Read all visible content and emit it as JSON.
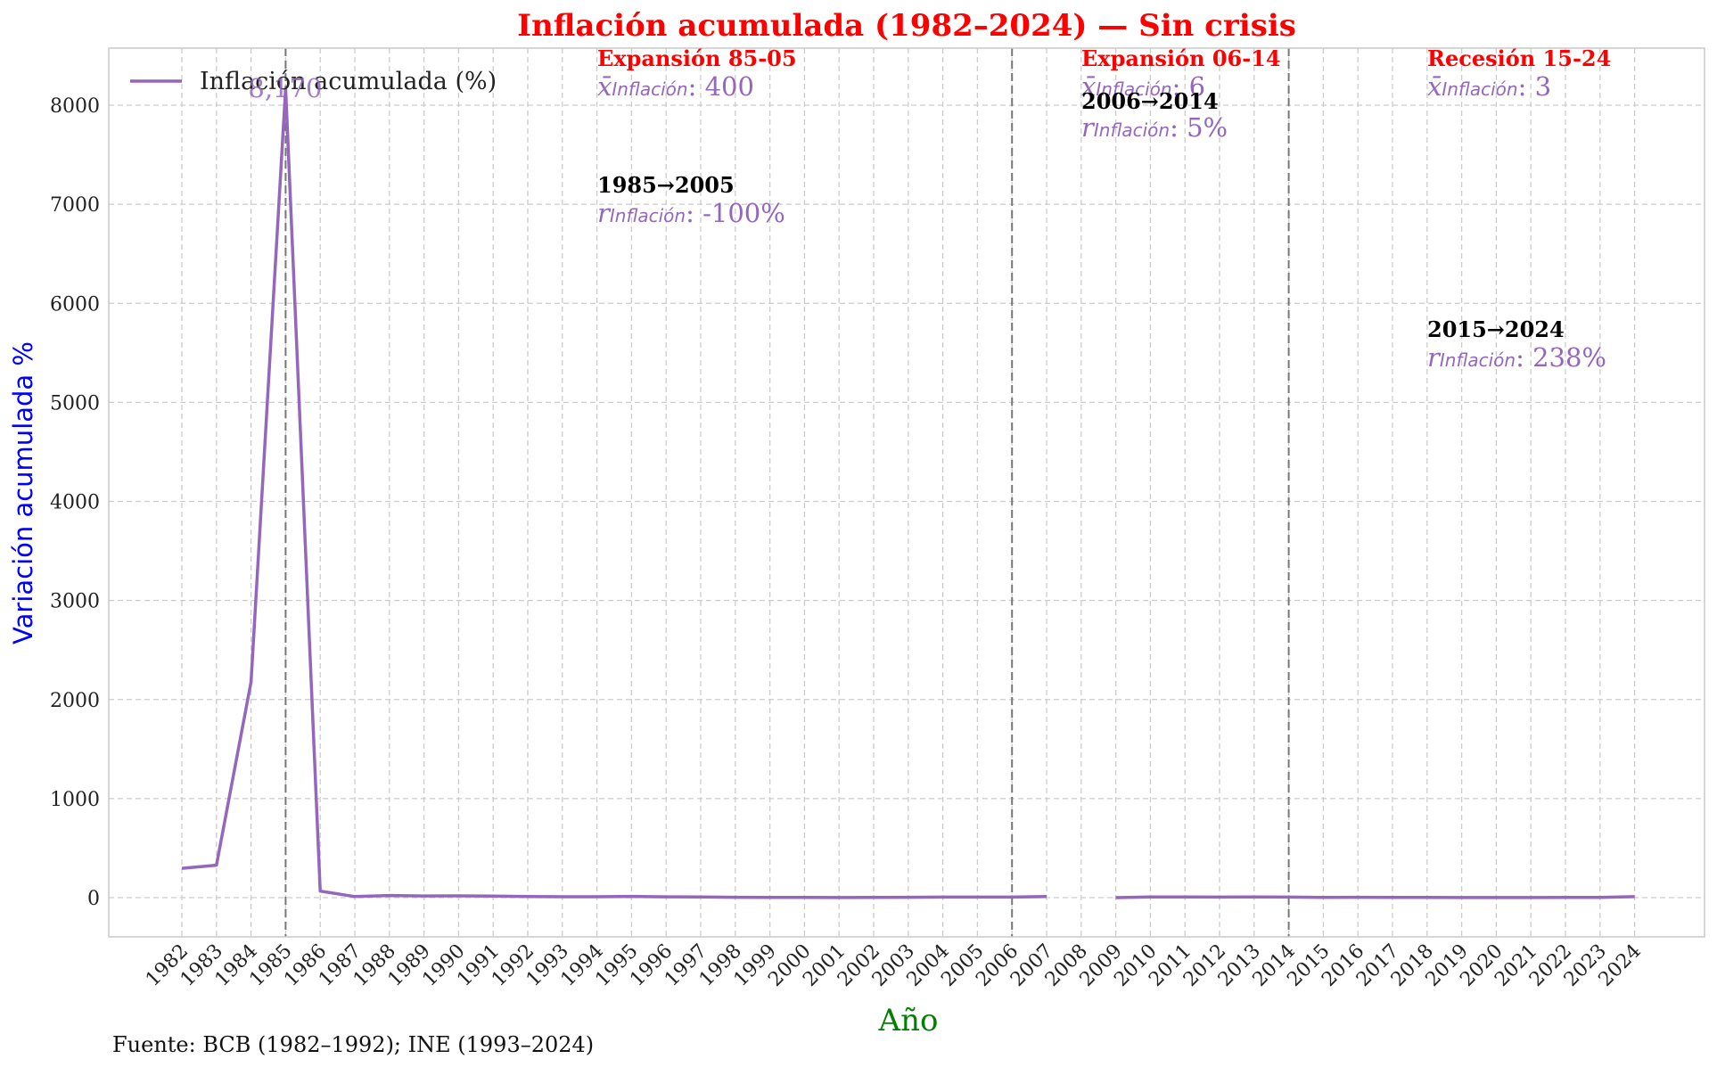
{
  "chart_data": {
    "type": "line",
    "title": "Inflación acumulada (1982–2024) — Sin crisis",
    "xlabel": "Año",
    "ylabel": "Variación acumulada %",
    "source": "Fuente: BCB (1982–1992); INE (1993–2024)",
    "ylim": [
      -400,
      8580
    ],
    "yticks": [
      0,
      1000,
      2000,
      3000,
      4000,
      5000,
      6000,
      7000,
      8000
    ],
    "grid": true,
    "legend_position": "top-left",
    "line_color": "#9467bd",
    "categories": [
      "1982",
      "1983",
      "1984",
      "1985",
      "1986",
      "1987",
      "1988",
      "1989",
      "1990",
      "1991",
      "1992",
      "1993",
      "1994",
      "1995",
      "1996",
      "1997",
      "1998",
      "1999",
      "2000",
      "2001",
      "2002",
      "2003",
      "2004",
      "2005",
      "2006",
      "2007",
      "2008",
      "2009",
      "2010",
      "2011",
      "2012",
      "2013",
      "2014",
      "2015",
      "2016",
      "2017",
      "2018",
      "2019",
      "2020",
      "2021",
      "2022",
      "2023",
      "2024"
    ],
    "series": [
      {
        "name": "Inflación acumulada (%)",
        "values": [
          296,
          328,
          2177,
          8170,
          66,
          11,
          22,
          17,
          18,
          15,
          11,
          9,
          9,
          13,
          8,
          7,
          4,
          3,
          3,
          1,
          2,
          4,
          5,
          5,
          5,
          12,
          null,
          0,
          7,
          7,
          5,
          7,
          5,
          3,
          4,
          3,
          2,
          1,
          1,
          1,
          3,
          2,
          10
        ]
      }
    ],
    "period_lines": [
      "1985",
      "2006",
      "2014"
    ],
    "peak_label": {
      "year": "1985",
      "text": "8,170"
    },
    "annotations": [
      {
        "title": "Expansión 85-05",
        "mean_label": "x̄",
        "mean_sub": "Inflación",
        "mean_value": ": 400",
        "range": "1985→2005",
        "r_label": "r",
        "r_sub": "Inflación",
        "r_value": ": -100%"
      },
      {
        "title": "Expansión 06-14",
        "mean_label": "x̄",
        "mean_sub": "Inflación",
        "mean_value": ": 6",
        "range": "2006→2014",
        "r_label": "r",
        "r_sub": "Inflación",
        "r_value": ": 5%"
      },
      {
        "title": "Recesión 15-24",
        "mean_label": "x̄",
        "mean_sub": "Inflación",
        "mean_value": ": 3",
        "range": "2015→2024",
        "r_label": "r",
        "r_sub": "Inflación",
        "r_value": ": 238%"
      }
    ]
  }
}
